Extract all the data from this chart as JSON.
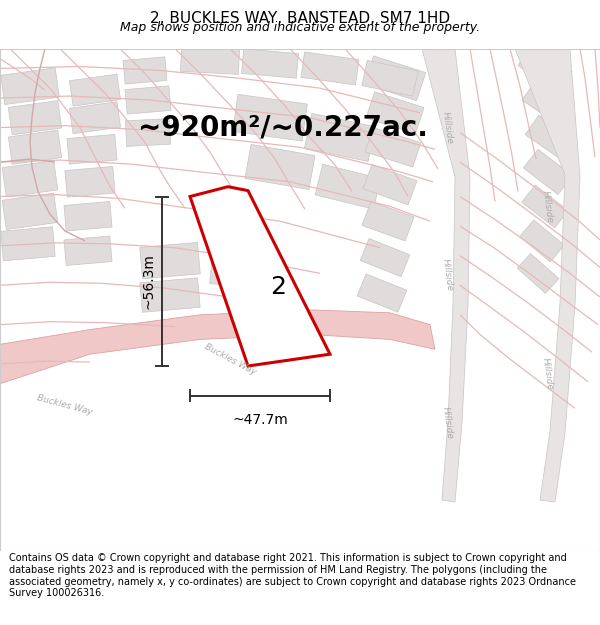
{
  "title": "2, BUCKLES WAY, BANSTEAD, SM7 1HD",
  "subtitle": "Map shows position and indicative extent of the property.",
  "area_label": "~920m²/~0.227ac.",
  "width_label": "~47.7m",
  "height_label": "~56.3m",
  "plot_number": "2",
  "footer_text": "Contains OS data © Crown copyright and database right 2021. This information is subject to Crown copyright and database rights 2023 and is reproduced with the permission of HM Land Registry. The polygons (including the associated geometry, namely x, y co-ordinates) are subject to Crown copyright and database rights 2023 Ordnance Survey 100026316.",
  "bg_color": "#ffffff",
  "map_bg_color": "#f8f5f5",
  "plot_fill": "#ffffff",
  "plot_edge_color": "#cc0000",
  "road_pink": "#f0c8c8",
  "road_outline": "#e0a0a0",
  "building_fill": "#e0dcdc",
  "building_edge": "#c8c4c4",
  "hillside_road_fill": "#e8e4e4",
  "hillside_road_edge": "#c8c4c4",
  "road_line": "#e8b8b8",
  "dim_color": "#333333",
  "road_label_color": "#aaaaaa",
  "title_fontsize": 11,
  "subtitle_fontsize": 9,
  "area_fontsize": 20,
  "dim_fontsize": 10,
  "plot_num_fontsize": 18,
  "footer_fontsize": 7
}
